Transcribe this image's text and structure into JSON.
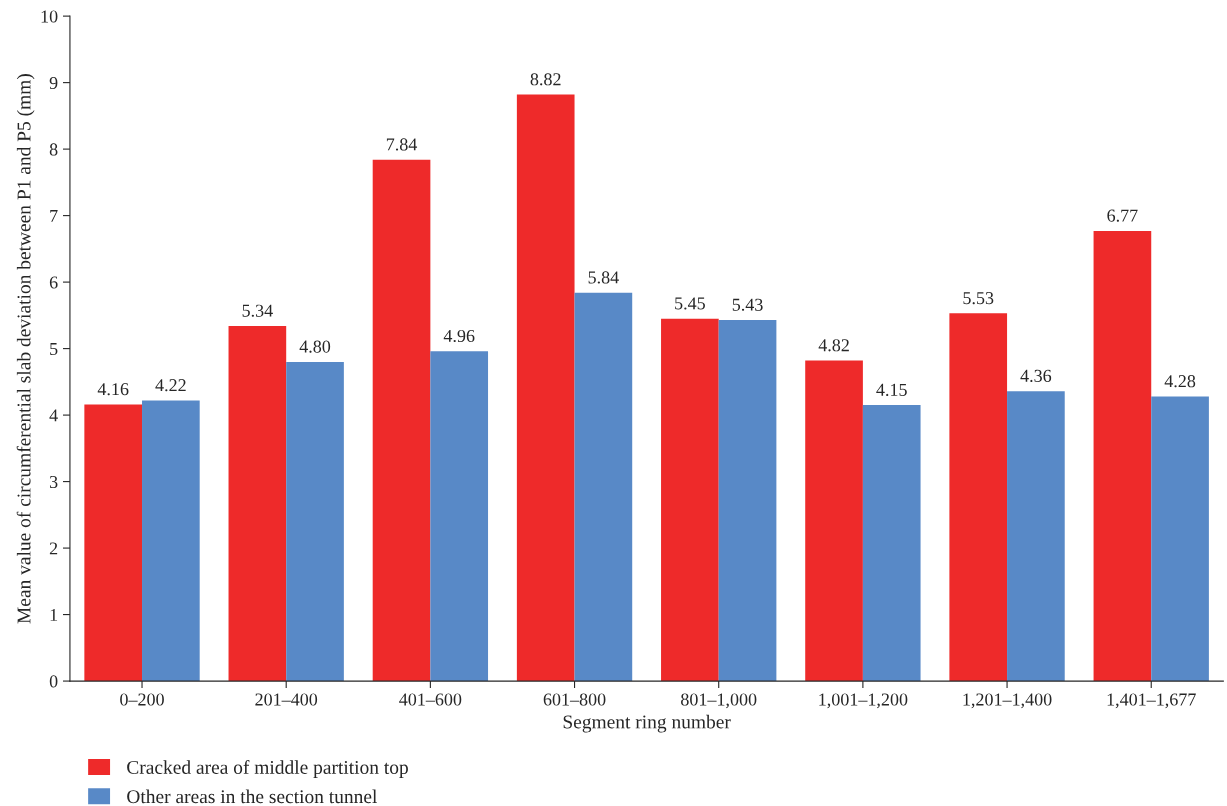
{
  "chart_data": {
    "type": "bar",
    "xlabel": "Segment ring number",
    "ylabel": "Mean value of circumferential slab deviation between P1 and P5 (mm)",
    "categories": [
      "0–200",
      "201–400",
      "401–600",
      "601–800",
      "801–1,000",
      "1,001–1,200",
      "1,201–1,400",
      "1,401–1,677"
    ],
    "series": [
      {
        "name": "Cracked area of middle partition top",
        "color": "#ee2a2a",
        "values": [
          4.16,
          5.34,
          7.84,
          8.82,
          5.45,
          4.82,
          5.53,
          6.77
        ],
        "value_labels": [
          "4.16",
          "5.34",
          "7.84",
          "8.82",
          "5.45",
          "4.82",
          "5.53",
          "6.77"
        ]
      },
      {
        "name": "Other areas in the section tunnel",
        "color": "#5889c7",
        "values": [
          4.22,
          4.8,
          4.96,
          5.84,
          5.43,
          4.15,
          4.36,
          4.28
        ],
        "value_labels": [
          "4.22",
          "4.80",
          "4.96",
          "5.84",
          "5.43",
          "4.15",
          "4.36",
          "4.28"
        ]
      }
    ],
    "ylim": [
      0,
      10
    ],
    "yticks": [
      0,
      1,
      2,
      3,
      4,
      5,
      6,
      7,
      8,
      9,
      10
    ],
    "grid": false,
    "legend": "bottom left"
  }
}
